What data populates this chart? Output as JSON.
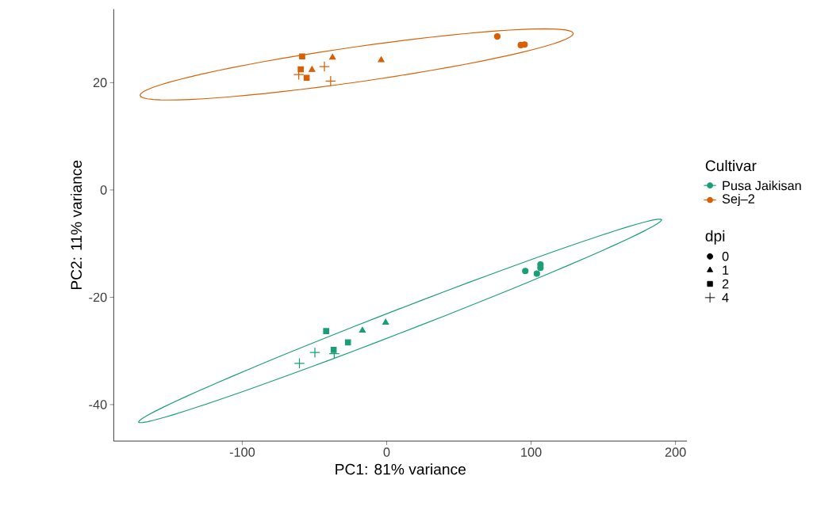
{
  "chart_data": {
    "type": "scatter",
    "xlabel": "PC1: 81% variance",
    "ylabel": "PC2: 11% variance",
    "legend_title": "Cultivar",
    "annotations": [
      "dpi"
    ],
    "legend": "right",
    "xlim": [
      -189,
      208
    ],
    "ylim": [
      -46.8,
      33.7
    ],
    "xticks": [
      -100,
      0,
      100,
      200
    ],
    "yticks": [
      -40,
      -20,
      0,
      20
    ],
    "series": [
      {
        "name": "Pusa Jaikisan",
        "color": "#1b9e77"
      },
      {
        "name": "Sej–2",
        "color": "#d95f02"
      },
      {
        "color": "#1b9e77",
        "marker": "circle",
        "x": [
          96.0,
          104.0,
          106.5,
          106.5
        ],
        "values": [
          -15.1,
          -15.6,
          -13.9,
          -14.5
        ]
      },
      {
        "color": "#1b9e77",
        "marker": "triangle",
        "x": [
          -16.8,
          -0.7
        ],
        "values": [
          -26.2,
          -24.7
        ]
      },
      {
        "color": "#1b9e77",
        "marker": "square",
        "x": [
          -41.9,
          -26.8,
          -36.7
        ],
        "values": [
          -26.3,
          -28.4,
          -29.8
        ]
      },
      {
        "color": "#1b9e77",
        "marker": "cross",
        "x": [
          -49.7,
          -60.4,
          -36.3
        ],
        "values": [
          -30.3,
          -32.3,
          -30.5
        ]
      },
      {
        "color": "#d95f02",
        "marker": "circle",
        "x": [
          76.6,
          92.9,
          95.5
        ],
        "values": [
          28.6,
          27.0,
          27.1
        ]
      },
      {
        "color": "#d95f02",
        "marker": "triangle",
        "x": [
          -37.5,
          -3.8,
          -51.7
        ],
        "values": [
          24.7,
          24.2,
          22.4
        ]
      },
      {
        "color": "#d95f02",
        "marker": "square",
        "x": [
          -58.5,
          -59.5,
          -55.4
        ],
        "values": [
          24.9,
          22.5,
          20.9
        ]
      },
      {
        "color": "#d95f02",
        "marker": "cross",
        "x": [
          -43.1,
          -60.9,
          -38.8
        ],
        "values": [
          23.0,
          21.5,
          20.3
        ]
      },
      {
        "name": "0",
        "color": "#000000",
        "marker": "circle"
      },
      {
        "name": "1",
        "color": "#000000",
        "marker": "triangle"
      },
      {
        "name": "2",
        "color": "#000000",
        "marker": "square"
      },
      {
        "name": "4",
        "color": "#000000",
        "marker": "cross"
      }
    ]
  }
}
